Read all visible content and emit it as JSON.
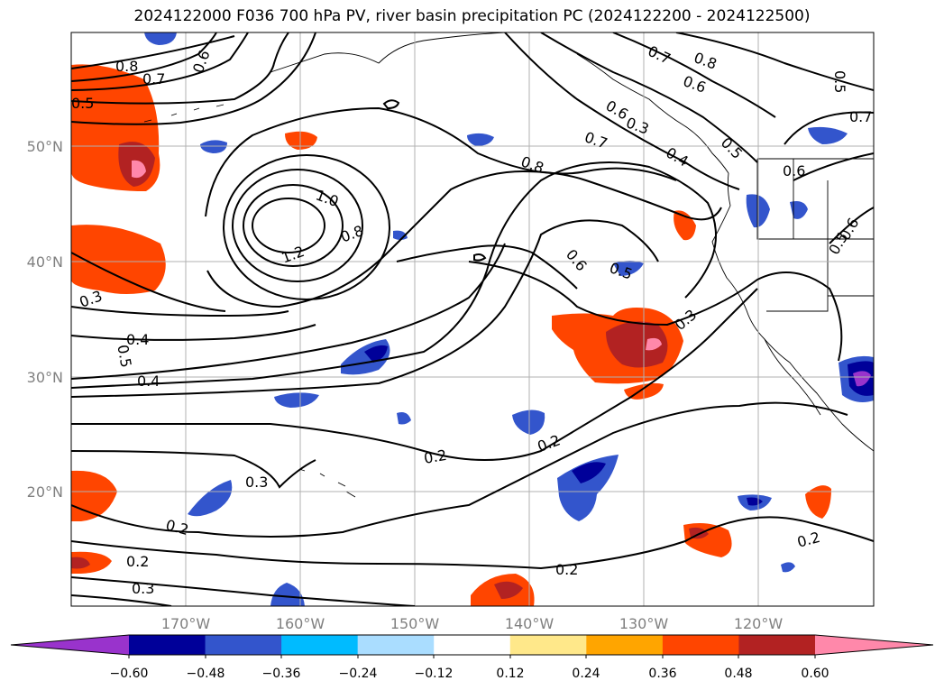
{
  "title": "2024122000 F036 700 hPa PV, river basin precipitation PC (2024122200 - 2024122500)",
  "lon_ticks": [
    "170°W",
    "160°W",
    "150°W",
    "140°W",
    "130°W",
    "120°W"
  ],
  "lat_ticks": [
    "50°N",
    "40°N",
    "30°N",
    "20°N"
  ],
  "colorbar": {
    "colors": [
      "#9933cc",
      "#000099",
      "#3355cc",
      "#00bbff",
      "#aaddff",
      "#ffffff",
      "#ffe88a",
      "#ffa500",
      "#ff4500",
      "#b22222",
      "#ff88aa"
    ],
    "tick_labels": [
      "−0.60",
      "−0.48",
      "−0.36",
      "−0.24",
      "−0.12",
      "0.12",
      "0.24",
      "0.36",
      "0.48",
      "0.60"
    ]
  },
  "contour_labels": [
    "0.8",
    "0.7",
    "0.6",
    "0.5",
    "0.7",
    "0.8",
    "0.6",
    "0.5",
    "0.7",
    "0.6",
    "0.3",
    "0.4",
    "0.5",
    "0.7",
    "0.6",
    "0.8",
    "1.0",
    "1.2",
    "0.8",
    "0.6",
    "0.5",
    "0.6",
    "0.5",
    "0.3",
    "0.3",
    "0.4",
    "0.5",
    "0.4",
    "0.2",
    "0.2",
    "0.3",
    "0.2",
    "0.2",
    "0.2",
    "0.2",
    "0.3"
  ]
}
